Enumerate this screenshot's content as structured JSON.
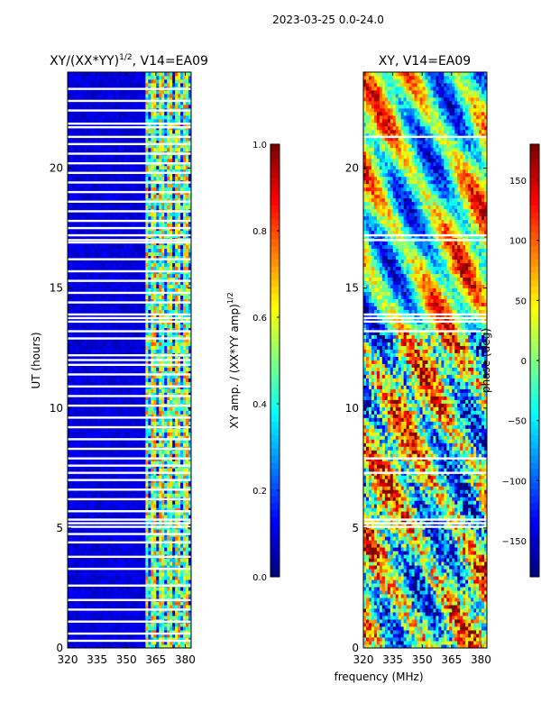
{
  "suptitle": "2023-03-25 0.0-24.0",
  "shared_xlabel": "frequency (MHz)",
  "chart_data": [
    {
      "type": "heatmap",
      "title": "XY/(XX*YY)",
      "title_exp": "1/2",
      "title_suffix": ", V14=EA09",
      "xlabel": "",
      "ylabel": "UT (hours)",
      "xlim": [
        320,
        383
      ],
      "ylim": [
        0,
        24
      ],
      "xticks": [
        320,
        335,
        350,
        365,
        380
      ],
      "yticks": [
        0,
        5,
        10,
        15,
        20
      ],
      "colorbar": {
        "label": "XY amp. / (XX*YY amp)",
        "label_exp": "1/2",
        "range": [
          0.0,
          1.0
        ],
        "ticks": [
          "0.0",
          "0.2",
          "0.4",
          "0.6",
          "0.8",
          "1.0"
        ],
        "colormap": "jet"
      },
      "description_mode": "amplitude",
      "low_band_level": 0.05,
      "high_band_start": 360,
      "high_band_level": 0.55,
      "gap_hours": [
        0.3,
        0.6,
        1.1,
        1.6,
        2.0,
        2.6,
        3.3,
        3.8,
        4.4,
        4.75,
        5.05,
        5.2,
        5.35,
        5.7,
        6.2,
        6.6,
        7.0,
        7.3,
        7.6,
        7.9,
        8.3,
        8.7,
        9.2,
        9.6,
        10.1,
        10.5,
        10.9,
        11.4,
        11.8,
        12.0,
        12.2,
        12.9,
        13.2,
        13.6,
        13.75,
        13.9,
        14.4,
        14.8,
        15.3,
        15.7,
        16.2,
        16.9,
        17.0,
        17.2,
        17.5,
        17.8,
        18.2,
        18.6,
        19.0,
        19.4,
        19.8,
        20.2,
        20.6,
        21.0,
        21.3,
        21.7,
        21.85,
        22.4,
        22.8,
        23.3
      ]
    },
    {
      "type": "heatmap",
      "title": "XY, V14=EA09",
      "xlabel": "frequency (MHz)",
      "ylabel": "",
      "xlim": [
        320,
        383
      ],
      "ylim": [
        0,
        24
      ],
      "xticks": [
        320,
        335,
        350,
        365,
        380
      ],
      "yticks": [
        0,
        5,
        10,
        15,
        20
      ],
      "colorbar": {
        "label": "phase (deg)",
        "range": [
          -180,
          180
        ],
        "ticks": [
          "−150",
          "−100",
          "−50",
          "0",
          "50",
          "100",
          "150"
        ],
        "tick_values": [
          -150,
          -100,
          -50,
          0,
          50,
          100,
          150
        ],
        "colormap": "jet"
      },
      "description_mode": "phase",
      "gap_hours": [
        5.05,
        5.2,
        5.35,
        7.3,
        7.9,
        13.2,
        13.6,
        13.75,
        13.9,
        17.0,
        17.2,
        21.3
      ]
    }
  ]
}
